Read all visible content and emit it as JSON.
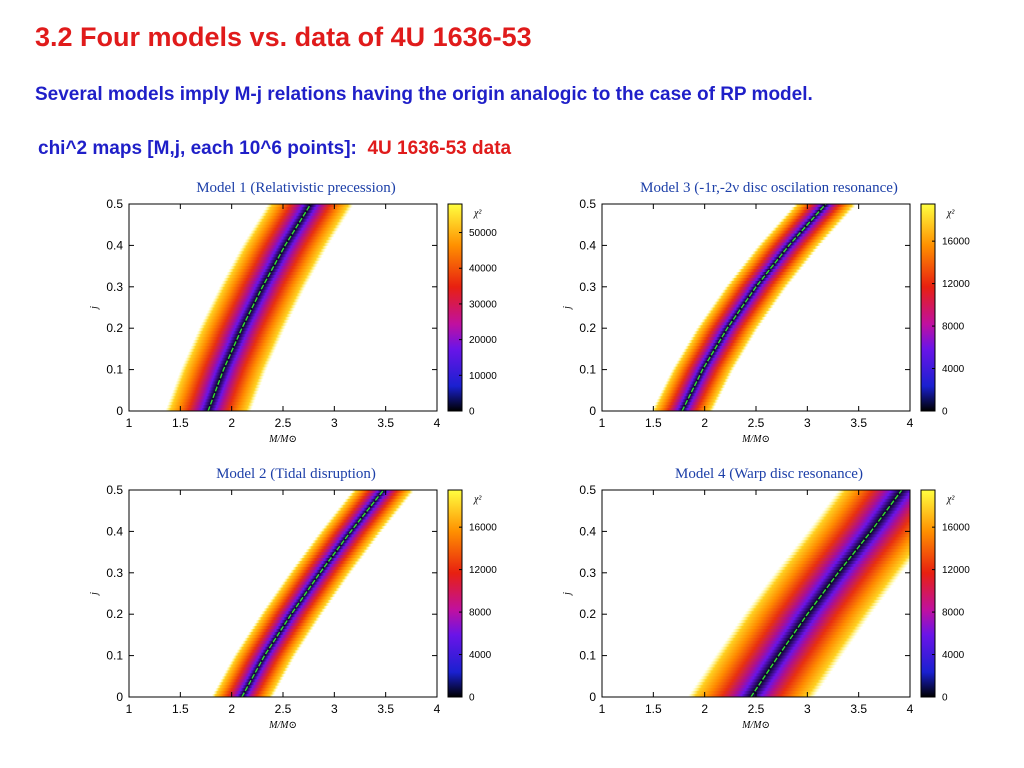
{
  "slide": {
    "title": "3.2 Four models vs. data of 4U 1636-53",
    "subtitle": "Several models imply M-j relations having the origin analogic to the case of RP model.",
    "caption_blue": "chi^2 maps [M,j, each 10^6 points]:",
    "caption_red": "4U 1636-53 data"
  },
  "colors": {
    "title": "#e01b1b",
    "text_blue": "#1f1fc8",
    "plot_title": "#1c3fa8",
    "best_fit_curve": "#33dd33"
  },
  "chart_data": [
    {
      "type": "heatmap",
      "title": "Model 1 (Relativistic precession)",
      "xlabel": "M/M⊙",
      "ylabel": "j",
      "colorbar_label": "χ²",
      "xlim": [
        1,
        4
      ],
      "ylim": [
        0,
        0.5
      ],
      "xticks": [
        "1",
        "1.5",
        "2",
        "2.5",
        "3",
        "3.5",
        "4"
      ],
      "yticks": [
        "0",
        "0.1",
        "0.2",
        "0.3",
        "0.4",
        "0.5"
      ],
      "colorbar_ticks": [
        "0",
        "10000",
        "20000",
        "30000",
        "40000",
        "50000"
      ],
      "colorbar_max": 58000,
      "best_fit_curve": {
        "j": [
          0,
          0.1,
          0.2,
          0.3,
          0.4,
          0.5
        ],
        "M": [
          1.77,
          1.92,
          2.1,
          2.3,
          2.52,
          2.77
        ]
      },
      "band_half_width_M": 0.42
    },
    {
      "type": "heatmap",
      "title": "Model 3 (-1r,-2ν disc oscilation resonance)",
      "xlabel": "M/M⊙",
      "ylabel": "j",
      "colorbar_label": "χ²",
      "xlim": [
        1,
        4
      ],
      "ylim": [
        0,
        0.5
      ],
      "xticks": [
        "1",
        "1.5",
        "2",
        "2.5",
        "3",
        "3.5",
        "4"
      ],
      "yticks": [
        "0",
        "0.1",
        "0.2",
        "0.3",
        "0.4",
        "0.5"
      ],
      "colorbar_ticks": [
        "0",
        "4000",
        "8000",
        "12000",
        "16000"
      ],
      "colorbar_max": 19500,
      "best_fit_curve": {
        "j": [
          0,
          0.1,
          0.2,
          0.3,
          0.4,
          0.5
        ],
        "M": [
          1.78,
          1.98,
          2.22,
          2.5,
          2.82,
          3.18
        ]
      },
      "band_half_width_M": 0.3
    },
    {
      "type": "heatmap",
      "title": "Model 2 (Tidal disruption)",
      "xlabel": "M/M⊙",
      "ylabel": "j",
      "colorbar_label": "χ²",
      "xlim": [
        1,
        4
      ],
      "ylim": [
        0,
        0.5
      ],
      "xticks": [
        "1",
        "1.5",
        "2",
        "2.5",
        "3",
        "3.5",
        "4"
      ],
      "yticks": [
        "0",
        "0.1",
        "0.2",
        "0.3",
        "0.4",
        "0.5"
      ],
      "colorbar_ticks": [
        "0",
        "4000",
        "8000",
        "12000",
        "16000"
      ],
      "colorbar_max": 19500,
      "best_fit_curve": {
        "j": [
          0,
          0.1,
          0.2,
          0.3,
          0.4,
          0.5
        ],
        "M": [
          2.1,
          2.32,
          2.58,
          2.86,
          3.16,
          3.48
        ]
      },
      "band_half_width_M": 0.3
    },
    {
      "type": "heatmap",
      "title": "Model 4 (Warp disc resonance)",
      "xlabel": "M/M⊙",
      "ylabel": "j",
      "colorbar_label": "χ²",
      "xlim": [
        1,
        4
      ],
      "ylim": [
        0,
        0.5
      ],
      "xticks": [
        "1",
        "1.5",
        "2",
        "2.5",
        "3",
        "3.5",
        "4"
      ],
      "yticks": [
        "0",
        "0.1",
        "0.2",
        "0.3",
        "0.4",
        "0.5"
      ],
      "colorbar_ticks": [
        "0",
        "4000",
        "8000",
        "12000",
        "16000"
      ],
      "colorbar_max": 19500,
      "best_fit_curve": {
        "j": [
          0,
          0.1,
          0.2,
          0.3,
          0.4,
          0.5
        ],
        "M": [
          2.45,
          2.72,
          3.0,
          3.3,
          3.62,
          3.92
        ]
      },
      "band_half_width_M": 0.62
    }
  ]
}
